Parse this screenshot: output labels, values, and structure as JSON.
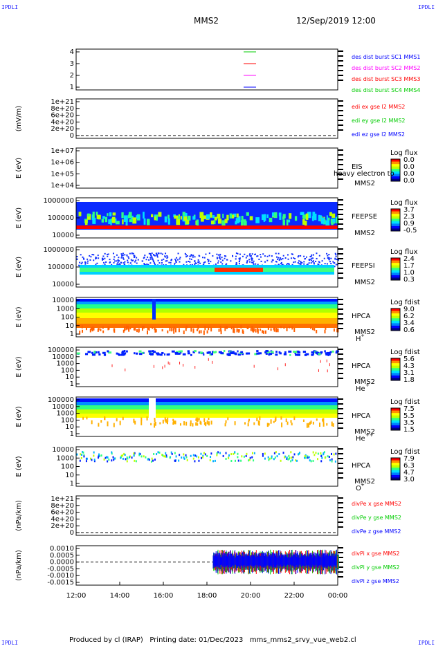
{
  "corners": {
    "top_left": "IPDLI",
    "top_right": "IPDLI",
    "bottom_left": "IPDLI",
    "bottom_right": "IPDLI"
  },
  "header": {
    "spacecraft": "MMS2",
    "datetime": "12/Sep/2019 12:00"
  },
  "footer": {
    "text": "Produced by cl (IRAP)   Printing date: 01/Dec/2023   mms_mms2_srvy_vue_web2.cl"
  },
  "colors": {
    "red": "#ff0000",
    "green": "#00cc00",
    "blue": "#0000ff",
    "magenta": "#ff00ff",
    "dark_blue": "#1010c0",
    "text": "#000000"
  },
  "chart_data": {
    "type": "heatmap",
    "x_range": [
      "12:00",
      "00:00"
    ],
    "x_ticks": [
      "12:00",
      "14:00",
      "16:00",
      "18:00",
      "20:00",
      "22:00",
      "00:00"
    ],
    "panels": [
      {
        "id": "dist-flags",
        "type": "line",
        "ylabel": "",
        "ticks": [
          "1",
          "2",
          "3",
          "4"
        ],
        "legend": [
          {
            "label": "des dist burst SC1 MMS1",
            "color": "#0000ff"
          },
          {
            "label": "des dist burst SC2 MMS2",
            "color": "#ff00ff"
          },
          {
            "label": "des dist burst SC3 MMS3",
            "color": "#ff0000"
          },
          {
            "label": "des dist burst SC4 MMS4",
            "color": "#00cc00"
          }
        ]
      },
      {
        "id": "edi-e",
        "type": "line",
        "ylabel": "(mV/m)",
        "ticks": [
          "0",
          "2e+20",
          "4e+20",
          "6e+20",
          "8e+20",
          "1e+21"
        ],
        "legend": [
          {
            "label": "edi ex gse l2 MMS2",
            "color": "#ff0000"
          },
          {
            "label": "edi ey gse l2 MMS2",
            "color": "#00cc00"
          },
          {
            "label": "edi ez gse l2 MMS2",
            "color": "#0000ff"
          }
        ]
      },
      {
        "id": "eis",
        "type": "heatmap",
        "ylabel": "E (eV)",
        "ticks": [
          "1e+04",
          "1e+05",
          "1e+06",
          "1e+07"
        ],
        "instrument": "EIS",
        "sc": "MMS2",
        "overlay": "heavy electron to",
        "colorbar": {
          "title": "Log flux",
          "ticks": [
            "0.0",
            "0.0",
            "0.0",
            "0.0"
          ]
        }
      },
      {
        "id": "feepse",
        "type": "heatmap",
        "ylabel": "E (eV)",
        "ticks": [
          "10000",
          "100000",
          "1000000"
        ],
        "instrument": "FEEPSE",
        "sc": "MMS2",
        "colorbar": {
          "title": "Log flux",
          "ticks": [
            "3.7",
            "2.3",
            "0.9",
            "-0.5"
          ]
        }
      },
      {
        "id": "feepsi",
        "type": "heatmap",
        "ylabel": "E (eV)",
        "ticks": [
          "10000",
          "100000",
          "1000000"
        ],
        "instrument": "FEEPSI",
        "sc": "MMS2",
        "colorbar": {
          "title": "Log flux",
          "ticks": [
            "2.4",
            "1.7",
            "1.0",
            "0.3"
          ]
        }
      },
      {
        "id": "hpca-h",
        "type": "heatmap",
        "ylabel": "E (eV)",
        "ticks": [
          "1",
          "10",
          "100",
          "1000",
          "10000"
        ],
        "instrument": "HPCA",
        "sc": "MMS2",
        "species": "H",
        "charge": "+",
        "colorbar": {
          "title": "Log fdist",
          "ticks": [
            "9.0",
            "6.2",
            "3.4",
            "0.6"
          ]
        }
      },
      {
        "id": "hpca-he",
        "type": "heatmap",
        "ylabel": "E (eV)",
        "ticks": [
          "1",
          "10",
          "100",
          "1000",
          "10000",
          "100000"
        ],
        "instrument": "HPCA",
        "sc": "MMS2",
        "species": "He",
        "charge": "+",
        "colorbar": {
          "title": "Log fdist",
          "ticks": [
            "5.6",
            "4.3",
            "3.1",
            "1.8"
          ]
        }
      },
      {
        "id": "hpca-hepp",
        "type": "heatmap",
        "ylabel": "E (eV)",
        "ticks": [
          "1",
          "10",
          "100",
          "1000",
          "10000",
          "100000"
        ],
        "instrument": "HPCA",
        "sc": "MMS2",
        "species": "He",
        "charge": "++",
        "colorbar": {
          "title": "Log fdist",
          "ticks": [
            "7.5",
            "5.5",
            "3.5",
            "1.5"
          ]
        }
      },
      {
        "id": "hpca-o",
        "type": "heatmap",
        "ylabel": "E (eV)",
        "ticks": [
          "1",
          "10",
          "100",
          "1000",
          "10000"
        ],
        "instrument": "HPCA",
        "sc": "MMS2",
        "species": "O",
        "charge": "+",
        "colorbar": {
          "title": "Log fdist",
          "ticks": [
            "7.9",
            "6.3",
            "4.7",
            "3.0"
          ]
        }
      },
      {
        "id": "divpe",
        "type": "line",
        "ylabel": "(nPa/km)",
        "ticks": [
          "0",
          "2e+20",
          "4e+20",
          "6e+20",
          "8e+20",
          "1e+21"
        ],
        "legend": [
          {
            "label": "divPe x gse MMS2",
            "color": "#ff0000"
          },
          {
            "label": "divPe y gse MMS2",
            "color": "#00cc00"
          },
          {
            "label": "divPe z gse MMS2",
            "color": "#0000ff"
          }
        ]
      },
      {
        "id": "divpi",
        "type": "line",
        "ylabel": "(nPa/km)",
        "ticks": [
          "-0.0015",
          "-0.0010",
          "-0.0005",
          "0.0000",
          "0.0005",
          "0.0010"
        ],
        "legend": [
          {
            "label": "divPi x gse MMS2",
            "color": "#ff0000"
          },
          {
            "label": "divPi y gse MMS2",
            "color": "#00cc00"
          },
          {
            "label": "divPi z gse MMS2",
            "color": "#0000ff"
          }
        ]
      }
    ]
  }
}
